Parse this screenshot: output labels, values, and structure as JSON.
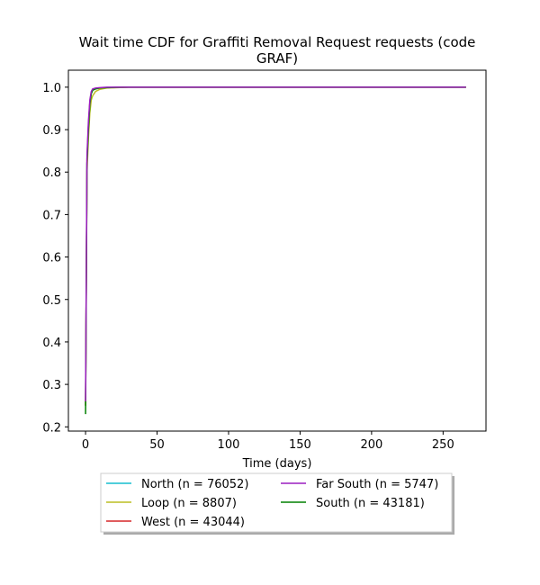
{
  "chart_data": {
    "type": "line",
    "title_line1": "Wait time CDF for Graffiti Removal Request  requests (code",
    "title_line2": "GRAF)",
    "xlabel": "Time (days)",
    "ylabel": "",
    "xlim": [
      -12,
      280
    ],
    "ylim": [
      0.19,
      1.04
    ],
    "xticks": [
      0,
      50,
      100,
      150,
      200,
      250
    ],
    "yticks": [
      0.2,
      0.3,
      0.4,
      0.5,
      0.6,
      0.7,
      0.8,
      0.9,
      1.0
    ],
    "xtick_labels": [
      "0",
      "50",
      "100",
      "150",
      "200",
      "250"
    ],
    "ytick_labels": [
      "0.2",
      "0.3",
      "0.4",
      "0.5",
      "0.6",
      "0.7",
      "0.8",
      "0.9",
      "1.0"
    ],
    "grid": false,
    "legend_placement": "below",
    "series": [
      {
        "name": "North (n = 76052)",
        "color": "#17becf",
        "x": [
          0,
          1,
          2,
          3,
          4,
          5,
          7,
          10,
          15,
          30,
          266
        ],
        "y": [
          0.25,
          0.82,
          0.9,
          0.96,
          0.985,
          0.993,
          0.996,
          0.998,
          0.999,
          1.0,
          1.0
        ]
      },
      {
        "name": "West (n = 43044)",
        "color": "#d62728",
        "x": [
          0,
          1,
          2,
          3,
          4,
          5,
          7,
          10,
          15,
          30,
          266
        ],
        "y": [
          0.25,
          0.83,
          0.91,
          0.965,
          0.988,
          0.994,
          0.997,
          0.998,
          0.999,
          1.0,
          1.0
        ]
      },
      {
        "name": "Loop (n = 8807)",
        "color": "#bcbd22",
        "x": [
          0,
          1,
          2,
          3,
          4,
          5,
          7,
          10,
          15,
          30,
          266
        ],
        "y": [
          0.25,
          0.8,
          0.88,
          0.94,
          0.97,
          0.98,
          0.99,
          0.995,
          0.998,
          1.0,
          1.0
        ]
      },
      {
        "name": "South (n = 43181)",
        "color": "#008000",
        "x": [
          0,
          1,
          2,
          3,
          4,
          5,
          7,
          10,
          15,
          30,
          266
        ],
        "y": [
          0.23,
          0.82,
          0.9,
          0.96,
          0.985,
          0.993,
          0.996,
          0.998,
          0.999,
          1.0,
          1.0
        ]
      },
      {
        "name": "Far South (n = 5747)",
        "color": "#9b1fc0",
        "x": [
          0,
          1,
          2,
          3,
          4,
          5,
          7,
          10,
          15,
          30,
          266
        ],
        "y": [
          0.26,
          0.84,
          0.92,
          0.97,
          0.99,
          0.996,
          0.998,
          0.999,
          1.0,
          1.0,
          1.0
        ]
      }
    ],
    "legend_order": [
      0,
      2,
      1,
      4,
      3
    ]
  }
}
